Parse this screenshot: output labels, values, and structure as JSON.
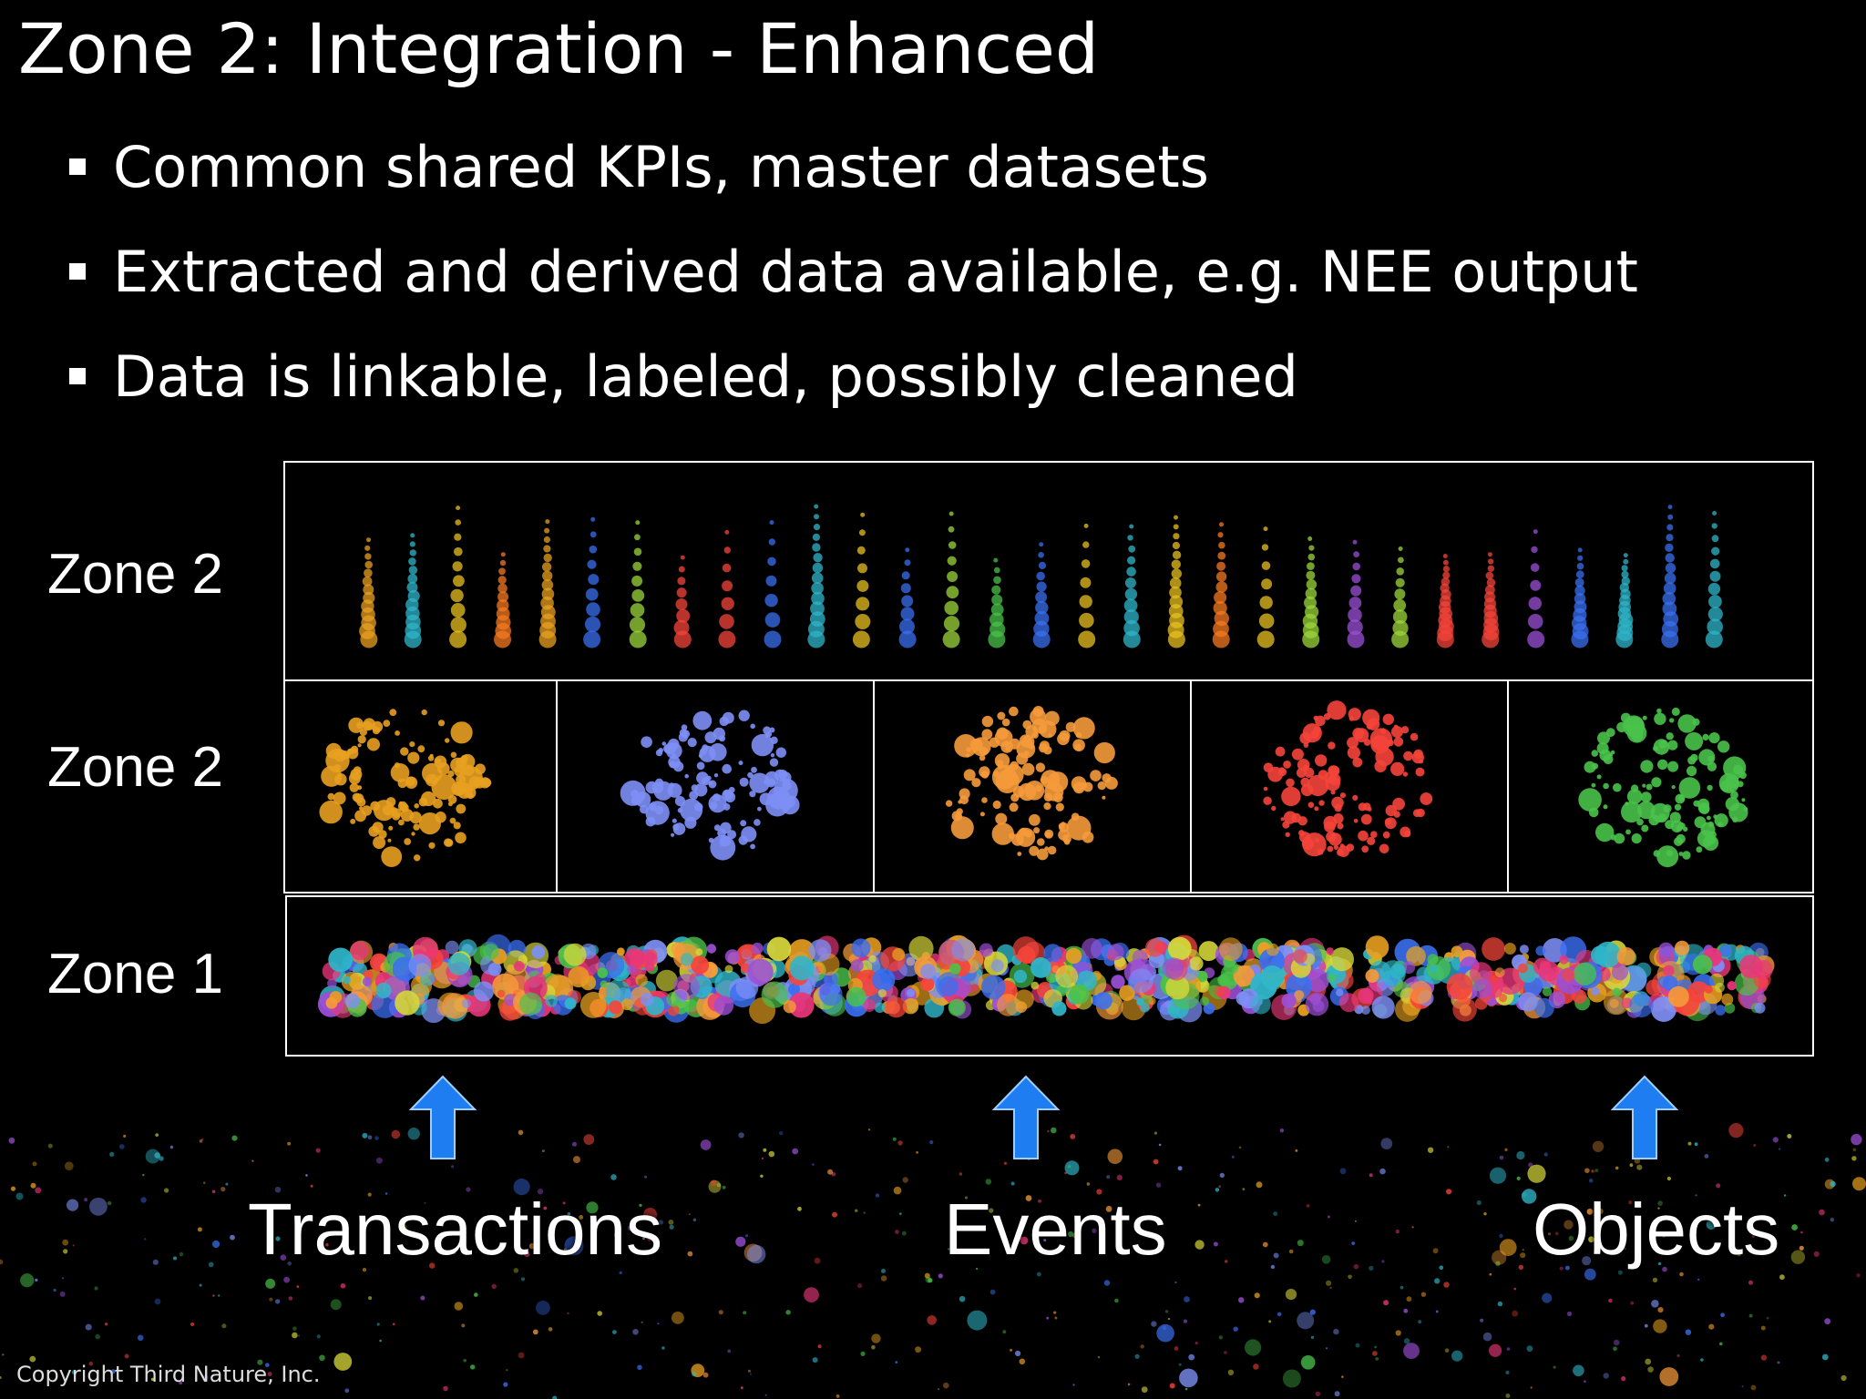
{
  "slide": {
    "title": "Zone 2: Integration - Enhanced",
    "bullets": [
      "Common shared KPIs, master datasets",
      "Extracted and derived data available, e.g. NEE output",
      "Data is linkable, labeled, possibly cleaned"
    ]
  },
  "diagram": {
    "rows": [
      {
        "label": "Zone 2"
      },
      {
        "label": "Zone 2"
      },
      {
        "label": "Zone 1"
      }
    ],
    "sources": [
      {
        "label": "Transactions"
      },
      {
        "label": "Events"
      },
      {
        "label": "Objects"
      }
    ],
    "colors": {
      "cluster_colors": [
        "#e8a020",
        "#7d8ff5",
        "#f59a3a",
        "#f5443a",
        "#49c24a"
      ],
      "arrow": "#1e7df0",
      "frame": "#ffffff"
    }
  },
  "footer": {
    "copyright": "Copyright Third Nature, Inc."
  }
}
